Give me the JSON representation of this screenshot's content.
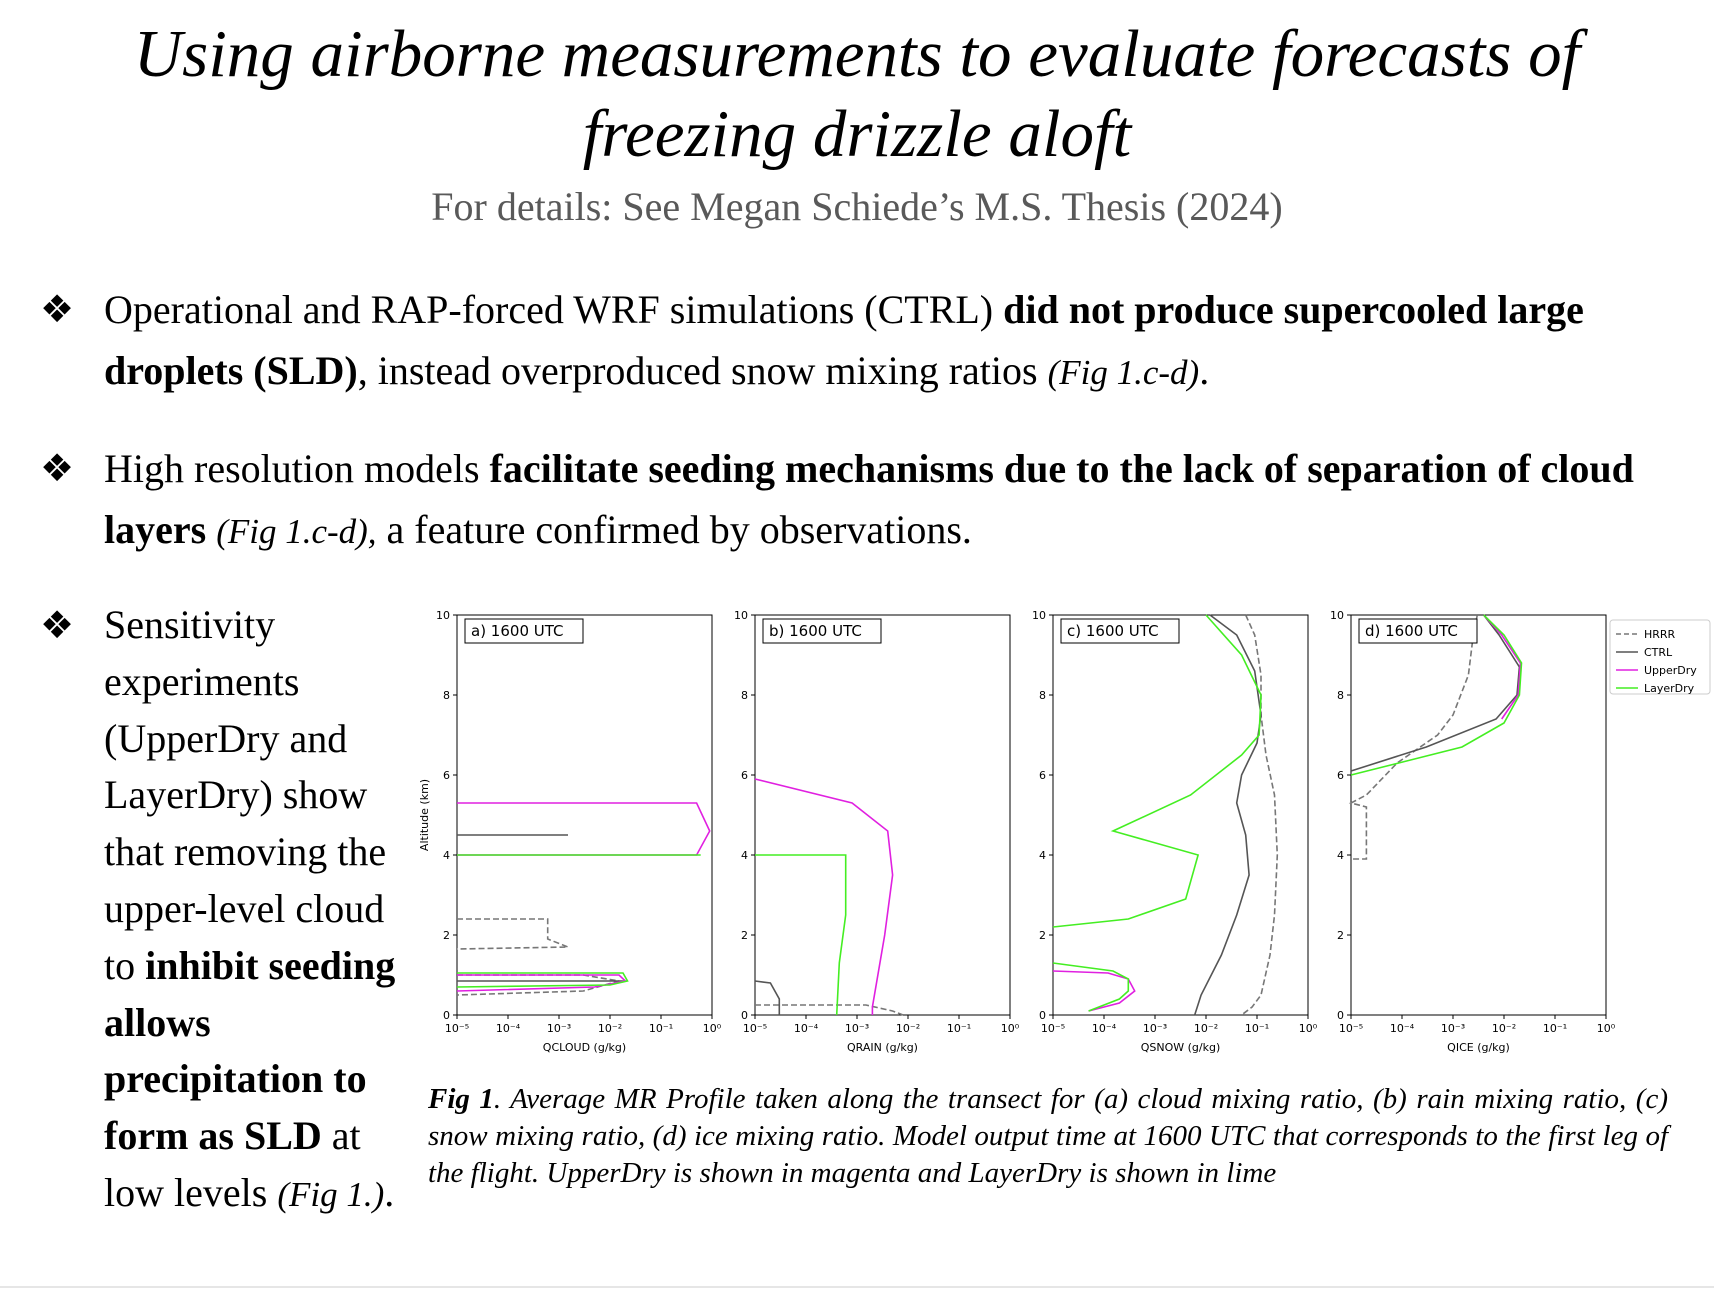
{
  "title_line1": "Using airborne measurements to evaluate forecasts of",
  "title_line2": "freezing drizzle aloft",
  "subtitle": "For details: See Megan Schiede’s M.S. Thesis (2024)",
  "bullet_symbol": "❖",
  "bullets": [
    {
      "p1": "Operational and RAP-forced WRF simulations (CTRL) ",
      "b1": "did not produce supercooled large droplets (SLD)",
      "p2": ", instead overproduced snow mixing ratios ",
      "ref": "(Fig 1.c-d)",
      "p3": "."
    },
    {
      "p1": "High resolution models ",
      "b1": "facilitate seeding mechanisms due to the lack of separation of cloud layers",
      "p2": " ",
      "ref": "(Fig 1.c-d),",
      "p3": " a feature confirmed by observations."
    },
    {
      "p1": "Sensitivity experiments (UpperDry and LayerDry) show that removing the upper-level cloud to ",
      "b1": "inhibit seeding allows precipitation to form as SLD",
      "p2": " at low levels ",
      "ref": "(Fig 1.)",
      "p3": "."
    }
  ],
  "caption": {
    "label": "Fig 1",
    "text": ". Average MR Profile taken along the transect for (a) cloud mixing ratio, (b) rain mixing ratio, (c) snow mixing ratio, (d) ice mixing ratio. Model output time at 1600 UTC that corresponds to the first leg of the flight. UpperDry is shown in magenta and LayerDry is shown in lime"
  },
  "chart_data": {
    "type": "line",
    "y_label": "Altitude (km)",
    "ylim": [
      0,
      10
    ],
    "y_ticks": [
      "0",
      "2",
      "4",
      "6",
      "8",
      "10"
    ],
    "x_scale": "log",
    "xlim": [
      1e-05,
      1
    ],
    "x_ticks": [
      "10⁻⁵",
      "10⁻⁴",
      "10⁻³",
      "10⁻²",
      "10⁻¹",
      "10⁰"
    ],
    "legend": {
      "position": "right",
      "entries": [
        {
          "name": "HRRR",
          "color": "#777777",
          "dash": true
        },
        {
          "name": "CTRL",
          "color": "#555555",
          "dash": false
        },
        {
          "name": "UpperDry",
          "color": "#e020e0",
          "dash": false
        },
        {
          "name": "LayerDry",
          "color": "#44ee22",
          "dash": false
        }
      ]
    },
    "panels": [
      {
        "label": "a) 1600 UTC",
        "xlabel": "QCLOUD (g/kg)",
        "series": [
          {
            "name": "HRRR",
            "points": [
              [
                1e-05,
                2.4
              ],
              [
                0.0006,
                2.4
              ],
              [
                0.0006,
                1.9
              ],
              [
                0.0015,
                1.7
              ],
              [
                1e-05,
                1.65
              ]
            ]
          },
          {
            "name": "HRRR",
            "points": [
              [
                1e-05,
                1.0
              ],
              [
                0.003,
                1.0
              ],
              [
                0.015,
                0.85
              ],
              [
                0.003,
                0.6
              ],
              [
                1e-05,
                0.5
              ]
            ]
          },
          {
            "name": "CTRL",
            "points": [
              [
                1e-05,
                4.5
              ],
              [
                0.0015,
                4.5
              ]
            ]
          },
          {
            "name": "CTRL",
            "points": [
              [
                1e-05,
                0.85
              ],
              [
                0.02,
                0.85
              ]
            ]
          },
          {
            "name": "UpperDry",
            "points": [
              [
                1e-05,
                5.3
              ],
              [
                0.5,
                5.3
              ],
              [
                0.9,
                4.6
              ],
              [
                0.5,
                4.0
              ],
              [
                1e-05,
                4.0
              ]
            ]
          },
          {
            "name": "UpperDry",
            "points": [
              [
                1e-05,
                1.0
              ],
              [
                0.015,
                1.0
              ],
              [
                0.02,
                0.85
              ],
              [
                0.005,
                0.7
              ],
              [
                1e-05,
                0.6
              ]
            ]
          },
          {
            "name": "LayerDry",
            "points": [
              [
                1e-05,
                4.0
              ],
              [
                0.6,
                4.0
              ]
            ]
          },
          {
            "name": "LayerDry",
            "points": [
              [
                1e-05,
                1.05
              ],
              [
                0.018,
                1.05
              ],
              [
                0.022,
                0.85
              ],
              [
                0.01,
                0.75
              ],
              [
                1e-05,
                0.7
              ]
            ]
          }
        ]
      },
      {
        "label": "b) 1600 UTC",
        "xlabel": "QRAIN (g/kg)",
        "series": [
          {
            "name": "HRRR",
            "points": [
              [
                1e-05,
                0.25
              ],
              [
                0.0015,
                0.25
              ],
              [
                0.005,
                0.1
              ],
              [
                0.008,
                0
              ]
            ]
          },
          {
            "name": "CTRL",
            "points": [
              [
                1e-05,
                0.85
              ],
              [
                2e-05,
                0.8
              ],
              [
                3e-05,
                0.4
              ],
              [
                3e-05,
                0
              ]
            ]
          },
          {
            "name": "UpperDry",
            "points": [
              [
                1e-05,
                5.9
              ],
              [
                0.0008,
                5.3
              ],
              [
                0.004,
                4.6
              ],
              [
                0.005,
                3.5
              ],
              [
                0.0035,
                2.0
              ],
              [
                0.002,
                0.2
              ],
              [
                0.002,
                0
              ]
            ]
          },
          {
            "name": "LayerDry",
            "points": [
              [
                1e-05,
                4.0
              ],
              [
                0.0006,
                4.0
              ],
              [
                0.0006,
                2.5
              ],
              [
                0.00045,
                1.3
              ],
              [
                0.0004,
                0
              ]
            ]
          }
        ]
      },
      {
        "label": "c) 1600 UTC",
        "xlabel": "QSNOW (g/kg)",
        "series": [
          {
            "name": "HRRR",
            "points": [
              [
                0.06,
                10
              ],
              [
                0.09,
                9.5
              ],
              [
                0.12,
                8.5
              ],
              [
                0.12,
                7.5
              ],
              [
                0.15,
                6.5
              ],
              [
                0.22,
                5.5
              ],
              [
                0.25,
                4.0
              ],
              [
                0.22,
                2.5
              ],
              [
                0.18,
                1.5
              ],
              [
                0.12,
                0.5
              ],
              [
                0.08,
                0.2
              ],
              [
                0.05,
                0
              ]
            ]
          },
          {
            "name": "CTRL",
            "points": [
              [
                0.012,
                10
              ],
              [
                0.04,
                9.5
              ],
              [
                0.09,
                8.6
              ],
              [
                0.12,
                7.5
              ],
              [
                0.1,
                6.8
              ],
              [
                0.05,
                6.0
              ],
              [
                0.04,
                5.3
              ],
              [
                0.06,
                4.5
              ],
              [
                0.07,
                3.5
              ],
              [
                0.04,
                2.5
              ],
              [
                0.02,
                1.5
              ],
              [
                0.008,
                0.5
              ],
              [
                0.006,
                0
              ]
            ]
          },
          {
            "name": "UpperDry",
            "points": [
              [
                1e-05,
                1.1
              ],
              [
                0.00012,
                1.05
              ],
              [
                0.0003,
                0.9
              ],
              [
                0.0004,
                0.6
              ],
              [
                0.0002,
                0.3
              ],
              [
                5e-05,
                0.1
              ]
            ]
          },
          {
            "name": "LayerDry",
            "points": [
              [
                0.01,
                10
              ],
              [
                0.05,
                9.0
              ],
              [
                0.12,
                8.0
              ],
              [
                0.11,
                7.0
              ],
              [
                0.05,
                6.5
              ],
              [
                0.005,
                5.5
              ],
              [
                0.00015,
                4.6
              ],
              [
                0.007,
                4.0
              ],
              [
                0.004,
                2.9
              ],
              [
                0.0003,
                2.4
              ],
              [
                1e-05,
                2.2
              ]
            ]
          },
          {
            "name": "LayerDry",
            "points": [
              [
                1e-05,
                1.3
              ],
              [
                0.00015,
                1.1
              ],
              [
                0.0003,
                0.9
              ],
              [
                0.0003,
                0.6
              ],
              [
                0.0002,
                0.4
              ],
              [
                5e-05,
                0.1
              ]
            ]
          }
        ]
      },
      {
        "label": "d) 1600 UTC",
        "xlabel": "QICE (g/kg)",
        "series": [
          {
            "name": "HRRR",
            "points": [
              [
                0.003,
                10
              ],
              [
                0.0025,
                9.5
              ],
              [
                0.002,
                8.5
              ],
              [
                0.001,
                7.5
              ],
              [
                0.0005,
                7.0
              ],
              [
                8e-05,
                6.3
              ],
              [
                2e-05,
                5.5
              ],
              [
                1e-05,
                5.3
              ],
              [
                2e-05,
                5.2
              ],
              [
                2e-05,
                3.9
              ],
              [
                1e-05,
                3.9
              ]
            ]
          },
          {
            "name": "CTRL",
            "points": [
              [
                0.004,
                10
              ],
              [
                0.008,
                9.5
              ],
              [
                0.02,
                8.7
              ],
              [
                0.018,
                8.0
              ],
              [
                0.007,
                7.4
              ],
              [
                0.0003,
                6.7
              ],
              [
                1e-05,
                6.1
              ]
            ]
          },
          {
            "name": "UpperDry",
            "points": [
              [
                0.004,
                10
              ],
              [
                0.009,
                9.5
              ],
              [
                0.021,
                8.8
              ],
              [
                0.019,
                8.0
              ],
              [
                0.009,
                7.4
              ]
            ]
          },
          {
            "name": "LayerDry",
            "points": [
              [
                0.004,
                10
              ],
              [
                0.01,
                9.5
              ],
              [
                0.022,
                8.8
              ],
              [
                0.02,
                8.0
              ],
              [
                0.01,
                7.3
              ],
              [
                0.0015,
                6.7
              ],
              [
                1e-05,
                6.0
              ]
            ]
          }
        ]
      }
    ]
  }
}
